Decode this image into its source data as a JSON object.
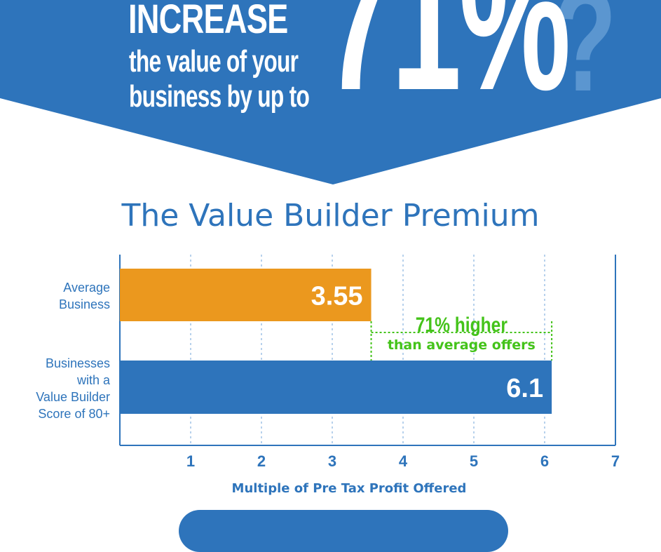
{
  "header": {
    "word_increase": "INCREASE",
    "line2": "the value of your",
    "line3": "business by up to",
    "big_number": "71%",
    "question_mark": "?"
  },
  "colors": {
    "brand_blue": "#2e74bb",
    "orange": "#eb981e",
    "green": "#44c31a",
    "grid": "#9fc2e6"
  },
  "chart_data": {
    "type": "bar",
    "orientation": "horizontal",
    "title": "The Value Builder Premium",
    "categories": [
      "Average\nBusiness",
      "Businesses\nwith a\nValue Builder\nScore of 80+"
    ],
    "values": [
      3.55,
      6.1
    ],
    "value_labels": [
      "3.55",
      "6.1"
    ],
    "bar_colors": [
      "#eb981e",
      "#2e74bb"
    ],
    "xlabel": "Multiple of Pre Tax Profit Offered",
    "xlim": [
      0,
      7
    ],
    "xticks": [
      "1",
      "2",
      "3",
      "4",
      "5",
      "6",
      "7"
    ],
    "grid": true,
    "annotation": {
      "line1": "71% higher",
      "line2": "than average offers",
      "from": 3.55,
      "to": 6.1
    }
  }
}
